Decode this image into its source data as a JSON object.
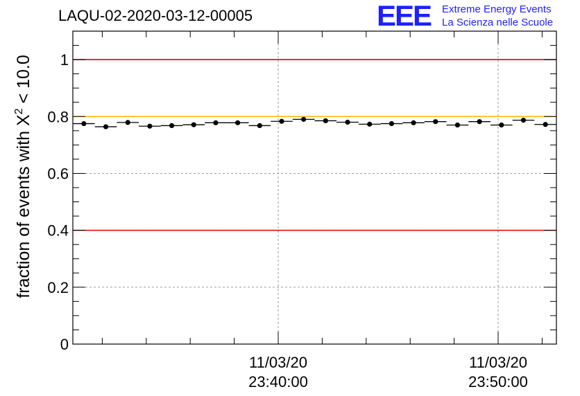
{
  "chart_data": {
    "type": "scatter",
    "title": "LAQU-02-2020-03-12-00005",
    "ylabel_parts": {
      "prefix": "fraction of events with ",
      "symbol": "X",
      "sup": "2",
      "suffix": " < 10.0"
    },
    "ylim": [
      0,
      1.1
    ],
    "yticks": [
      "0",
      "0.2",
      "0.4",
      "0.6",
      "0.8",
      "1"
    ],
    "xticks": [
      {
        "line1": "11/03/20",
        "line2": "23:40:00"
      },
      {
        "line1": "11/03/20",
        "line2": "23:50:00"
      }
    ],
    "grid": true,
    "reference_lines": [
      {
        "y": 1.0,
        "color": "#e00000"
      },
      {
        "y": 0.8,
        "color": "#ffb800"
      },
      {
        "y": 0.4,
        "color": "#e00000"
      }
    ],
    "series": [
      {
        "marker_color": "#000000",
        "values": [
          0.775,
          0.764,
          0.779,
          0.766,
          0.768,
          0.771,
          0.778,
          0.778,
          0.768,
          0.783,
          0.79,
          0.785,
          0.78,
          0.773,
          0.775,
          0.778,
          0.782,
          0.77,
          0.782,
          0.77,
          0.787,
          0.772
        ]
      }
    ]
  },
  "logo": {
    "mark": "EEE",
    "line1": "Extreme Energy Events",
    "line2": "La Scienza nelle Scuole",
    "color": "#1f1fff"
  }
}
